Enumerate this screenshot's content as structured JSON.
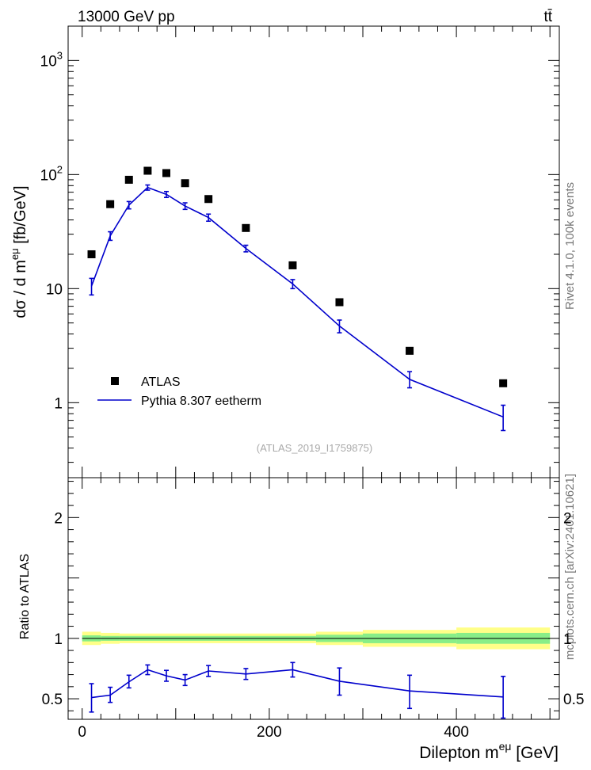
{
  "header": {
    "left": "13000 GeV pp",
    "right": "tt̄"
  },
  "side_labels": {
    "rivet": "Rivet 4.1.0,  100k events",
    "mcplots": "mcplots.cern.ch [arXiv:2401.10621]"
  },
  "colors": {
    "data": "#000000",
    "mc": "#0000cc",
    "band_outer": "#ffff88",
    "band_inner": "#88ee88",
    "watermark": "#999999"
  },
  "chart_data": [
    {
      "type": "scatter",
      "panel": "main",
      "title": "",
      "analysis_label": "(ATLAS_2019_I1759875)",
      "ylabel": "dσ / d m",
      "ylabel_sup": "eμ",
      "ylabel_unit": " [fb/GeV]",
      "yscale": "log",
      "ylim": [
        0.22,
        2000
      ],
      "xlim": [
        -15,
        510
      ],
      "y_ticks": [
        {
          "value": 1,
          "label": "1"
        },
        {
          "value": 10,
          "label": "10"
        },
        {
          "value": 100,
          "label": "10",
          "sup": "2"
        },
        {
          "value": 1000,
          "label": "10",
          "sup": "3"
        }
      ],
      "legend": [
        {
          "name": "ATLAS",
          "marker": "square"
        },
        {
          "name": "Pythia 8.307 eetherm",
          "marker": "line"
        }
      ],
      "series": [
        {
          "name": "ATLAS",
          "x": [
            10,
            30,
            50,
            70,
            90,
            110,
            135,
            175,
            225,
            275,
            350,
            450
          ],
          "values": [
            20,
            55,
            90,
            108,
            103,
            84,
            61,
            34,
            16,
            7.6,
            2.85,
            1.48
          ]
        },
        {
          "name": "Pythia 8.307 eetherm",
          "x": [
            10,
            30,
            50,
            70,
            90,
            110,
            135,
            175,
            225,
            275,
            350,
            450
          ],
          "values": [
            10.5,
            29,
            54,
            77,
            67,
            53,
            42,
            22.5,
            11,
            4.7,
            1.6,
            0.75
          ],
          "err_low": [
            8.8,
            26.5,
            50,
            73,
            63,
            49.5,
            39,
            21,
            10,
            4.1,
            1.35,
            0.57
          ],
          "err_high": [
            12.3,
            31.5,
            58,
            81,
            71,
            56.5,
            45,
            24,
            12,
            5.3,
            1.87,
            0.95
          ]
        }
      ]
    },
    {
      "type": "line",
      "panel": "ratio",
      "ylabel": "Ratio to ATLAS",
      "xlabel": "Dilepton m",
      "xlabel_sup": "eμ",
      "xlabel_unit": " [GeV]",
      "ylim": [
        0.33,
        2.33
      ],
      "xlim": [
        -15,
        510
      ],
      "x_ticks": [
        {
          "value": 0,
          "label": "0"
        },
        {
          "value": 200,
          "label": "200"
        },
        {
          "value": 400,
          "label": "400"
        }
      ],
      "y_ticks": [
        {
          "value": 0.5,
          "label": "0.5"
        },
        {
          "value": 1,
          "label": "1"
        },
        {
          "value": 2,
          "label": "2"
        }
      ],
      "bins": [
        {
          "lo": 0,
          "hi": 20,
          "outer": 0.055,
          "inner": 0.025
        },
        {
          "lo": 20,
          "hi": 40,
          "outer": 0.045,
          "inner": 0.02
        },
        {
          "lo": 40,
          "hi": 250,
          "outer": 0.04,
          "inner": 0.02
        },
        {
          "lo": 250,
          "hi": 300,
          "outer": 0.055,
          "inner": 0.03
        },
        {
          "lo": 300,
          "hi": 400,
          "outer": 0.07,
          "inner": 0.04
        },
        {
          "lo": 400,
          "hi": 500,
          "outer": 0.09,
          "inner": 0.045
        }
      ],
      "series": [
        {
          "name": "Pythia 8.307 eetherm",
          "x": [
            10,
            30,
            50,
            70,
            90,
            110,
            135,
            175,
            225,
            275,
            350,
            450
          ],
          "values": [
            0.51,
            0.53,
            0.64,
            0.74,
            0.69,
            0.655,
            0.73,
            0.705,
            0.74,
            0.645,
            0.565,
            0.515
          ],
          "err_low": [
            0.39,
            0.47,
            0.59,
            0.7,
            0.645,
            0.61,
            0.685,
            0.66,
            0.68,
            0.53,
            0.42,
            0.34
          ],
          "err_high": [
            0.625,
            0.595,
            0.695,
            0.78,
            0.735,
            0.7,
            0.775,
            0.75,
            0.8,
            0.755,
            0.695,
            0.685
          ]
        }
      ]
    }
  ]
}
